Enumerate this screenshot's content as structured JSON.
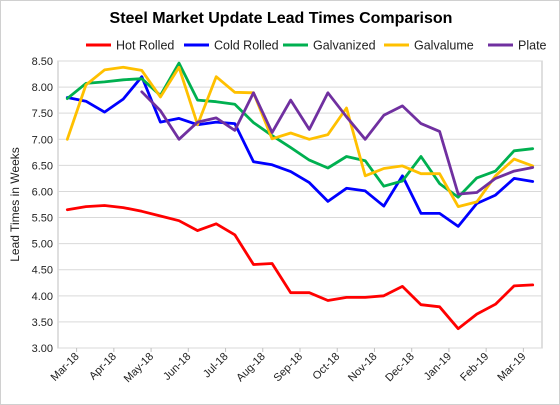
{
  "chart_data": {
    "type": "line",
    "title": "Steel Market Update Lead Times Comparison",
    "xlabel": "",
    "ylabel": "Lead Times in Weeks",
    "ylim": [
      3.0,
      8.5
    ],
    "ytick_step": 0.5,
    "grid": "horizontal",
    "legend_position": "top",
    "x_ticks": [
      "Mar-18",
      "Apr-18",
      "May-18",
      "Jun-18",
      "Jul-18",
      "Aug-18",
      "Sep-18",
      "Oct-18",
      "Nov-18",
      "Dec-18",
      "Jan-19",
      "Feb-19",
      "Mar-19"
    ],
    "points_per_month": 2,
    "series": [
      {
        "name": "Hot Rolled",
        "color": "#ff0000",
        "values": [
          5.65,
          5.71,
          5.73,
          5.69,
          5.62,
          5.53,
          5.44,
          5.25,
          5.38,
          5.17,
          4.6,
          4.62,
          4.06,
          4.06,
          3.91,
          3.97,
          3.97,
          4.0,
          4.18,
          3.83,
          3.79,
          3.37,
          3.65,
          3.84,
          4.19,
          4.21
        ]
      },
      {
        "name": "Cold Rolled",
        "color": "#0000ff",
        "values": [
          7.8,
          7.73,
          7.52,
          7.77,
          8.2,
          7.33,
          7.4,
          7.28,
          7.33,
          7.3,
          6.57,
          6.51,
          6.38,
          6.17,
          5.81,
          6.06,
          6.01,
          5.72,
          6.3,
          5.58,
          5.58,
          5.33,
          5.77,
          5.93,
          6.25,
          6.19
        ]
      },
      {
        "name": "Galvanized",
        "color": "#00b050",
        "values": [
          7.78,
          8.07,
          8.1,
          8.14,
          8.16,
          7.84,
          8.46,
          7.75,
          7.72,
          7.67,
          7.32,
          7.07,
          6.84,
          6.6,
          6.45,
          6.67,
          6.59,
          6.1,
          6.2,
          6.67,
          6.15,
          5.89,
          6.26,
          6.39,
          6.78,
          6.82
        ]
      },
      {
        "name": "Galvalume",
        "color": "#ffc000",
        "values": [
          7.0,
          8.04,
          8.33,
          8.38,
          8.32,
          7.81,
          8.38,
          7.28,
          8.2,
          7.9,
          7.89,
          7.01,
          7.12,
          7.0,
          7.09,
          7.6,
          6.3,
          6.44,
          6.49,
          6.34,
          6.34,
          5.71,
          5.8,
          6.3,
          6.62,
          6.49
        ]
      },
      {
        "name": "Plate",
        "color": "#7030a0",
        "start_index": 4,
        "values": [
          7.91,
          7.55,
          7.0,
          7.33,
          7.41,
          7.17,
          7.89,
          7.13,
          7.75,
          7.19,
          7.89,
          7.43,
          7.0,
          7.46,
          7.64,
          7.3,
          7.15,
          5.95,
          5.98,
          6.25,
          6.39,
          6.46
        ]
      }
    ]
  }
}
